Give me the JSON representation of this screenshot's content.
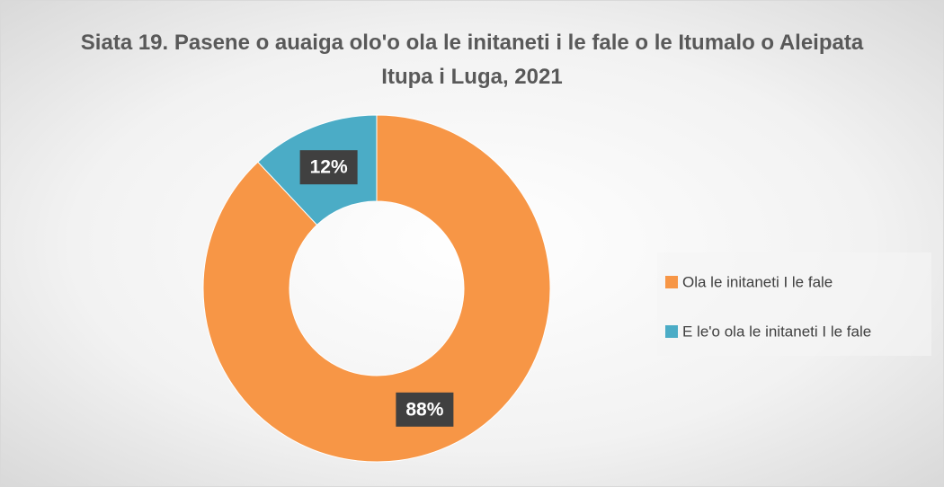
{
  "chart_data": {
    "type": "pie",
    "title": "Siata 19. Pasene o auaiga olo'o ola le initaneti i le fale o le Itumalo o Aleipata Itupa i Luga, 2021",
    "categories": [
      "Ola le initaneti I le fale",
      "E le'o ola le initaneti I le fale"
    ],
    "values": [
      88,
      12
    ],
    "value_labels": [
      "88%",
      "12%"
    ],
    "colors": [
      "#f79646",
      "#4bacc6"
    ],
    "legend": "right"
  }
}
